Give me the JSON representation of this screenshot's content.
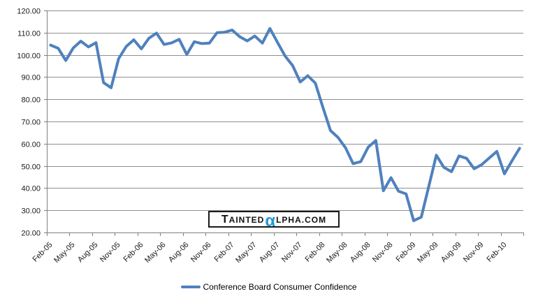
{
  "colors": {
    "series_line": "#4f81bd",
    "gridline": "#8f8f8f",
    "axis": "#7f7f7f",
    "label_text": "#1a1a1a",
    "watermark_alpha": "#1f9ad6",
    "watermark_border": "#1a1a1a"
  },
  "watermark": {
    "part_t": "T",
    "part_ainted": "AINTED",
    "alpha": "α",
    "part_lpha": "LPHA",
    "part_com": ".COM"
  },
  "legend": {
    "label": "Conference Board Consumer Confidence"
  },
  "chart_data": {
    "type": "line",
    "title": "",
    "xlabel": "",
    "ylabel": "",
    "ylim": [
      20,
      120
    ],
    "y_tick_step": 10,
    "y_tick_labels": [
      "120.00",
      "110.00",
      "100.00",
      "90.00",
      "80.00",
      "70.00",
      "60.00",
      "50.00",
      "40.00",
      "30.00",
      "20.00"
    ],
    "x_tick_labels": [
      "Feb-05",
      "May-05",
      "Aug-05",
      "Nov-05",
      "Feb-06",
      "May-06",
      "Aug-06",
      "Nov-06",
      "Feb-07",
      "May-07",
      "Aug-07",
      "Nov-07",
      "Feb-08",
      "May-08",
      "Aug-08",
      "Nov-08",
      "Feb-09",
      "May-09",
      "Aug-09",
      "Nov-09",
      "Feb-10"
    ],
    "x_tick_interval_months": 3,
    "grid": "horizontal",
    "legend_position": "bottom",
    "categories": [
      "Feb-05",
      "Mar-05",
      "Apr-05",
      "May-05",
      "Jun-05",
      "Jul-05",
      "Aug-05",
      "Sep-05",
      "Oct-05",
      "Nov-05",
      "Dec-05",
      "Jan-06",
      "Feb-06",
      "Mar-06",
      "Apr-06",
      "May-06",
      "Jun-06",
      "Jul-06",
      "Aug-06",
      "Sep-06",
      "Oct-06",
      "Nov-06",
      "Dec-06",
      "Jan-07",
      "Feb-07",
      "Mar-07",
      "Apr-07",
      "May-07",
      "Jun-07",
      "Jul-07",
      "Aug-07",
      "Sep-07",
      "Oct-07",
      "Nov-07",
      "Dec-07",
      "Jan-08",
      "Feb-08",
      "Mar-08",
      "Apr-08",
      "May-08",
      "Jun-08",
      "Jul-08",
      "Aug-08",
      "Sep-08",
      "Oct-08",
      "Nov-08",
      "Dec-08",
      "Jan-09",
      "Feb-09",
      "Mar-09",
      "Apr-09",
      "May-09",
      "Jun-09",
      "Jul-09",
      "Aug-09",
      "Sep-09",
      "Oct-09",
      "Nov-09",
      "Dec-09",
      "Jan-10",
      "Feb-10",
      "Mar-10",
      "Apr-10"
    ],
    "series": [
      {
        "name": "Conference Board Consumer Confidence",
        "color": "#4f81bd",
        "values": [
          104.4,
          103.0,
          97.5,
          103.1,
          106.2,
          103.6,
          105.5,
          87.5,
          85.2,
          98.3,
          103.8,
          106.8,
          102.7,
          107.5,
          109.8,
          104.7,
          105.4,
          107.0,
          100.2,
          105.9,
          105.1,
          105.3,
          110.0,
          110.2,
          111.2,
          108.2,
          106.3,
          108.5,
          105.3,
          111.9,
          105.6,
          99.5,
          95.2,
          87.8,
          90.6,
          87.3,
          76.4,
          65.9,
          62.8,
          58.1,
          51.0,
          51.9,
          58.5,
          61.4,
          38.8,
          44.7,
          38.6,
          37.4,
          25.3,
          26.9,
          40.8,
          54.8,
          49.3,
          47.4,
          54.5,
          53.4,
          48.7,
          50.6,
          53.6,
          56.5,
          46.4,
          52.3,
          57.9
        ]
      }
    ]
  }
}
